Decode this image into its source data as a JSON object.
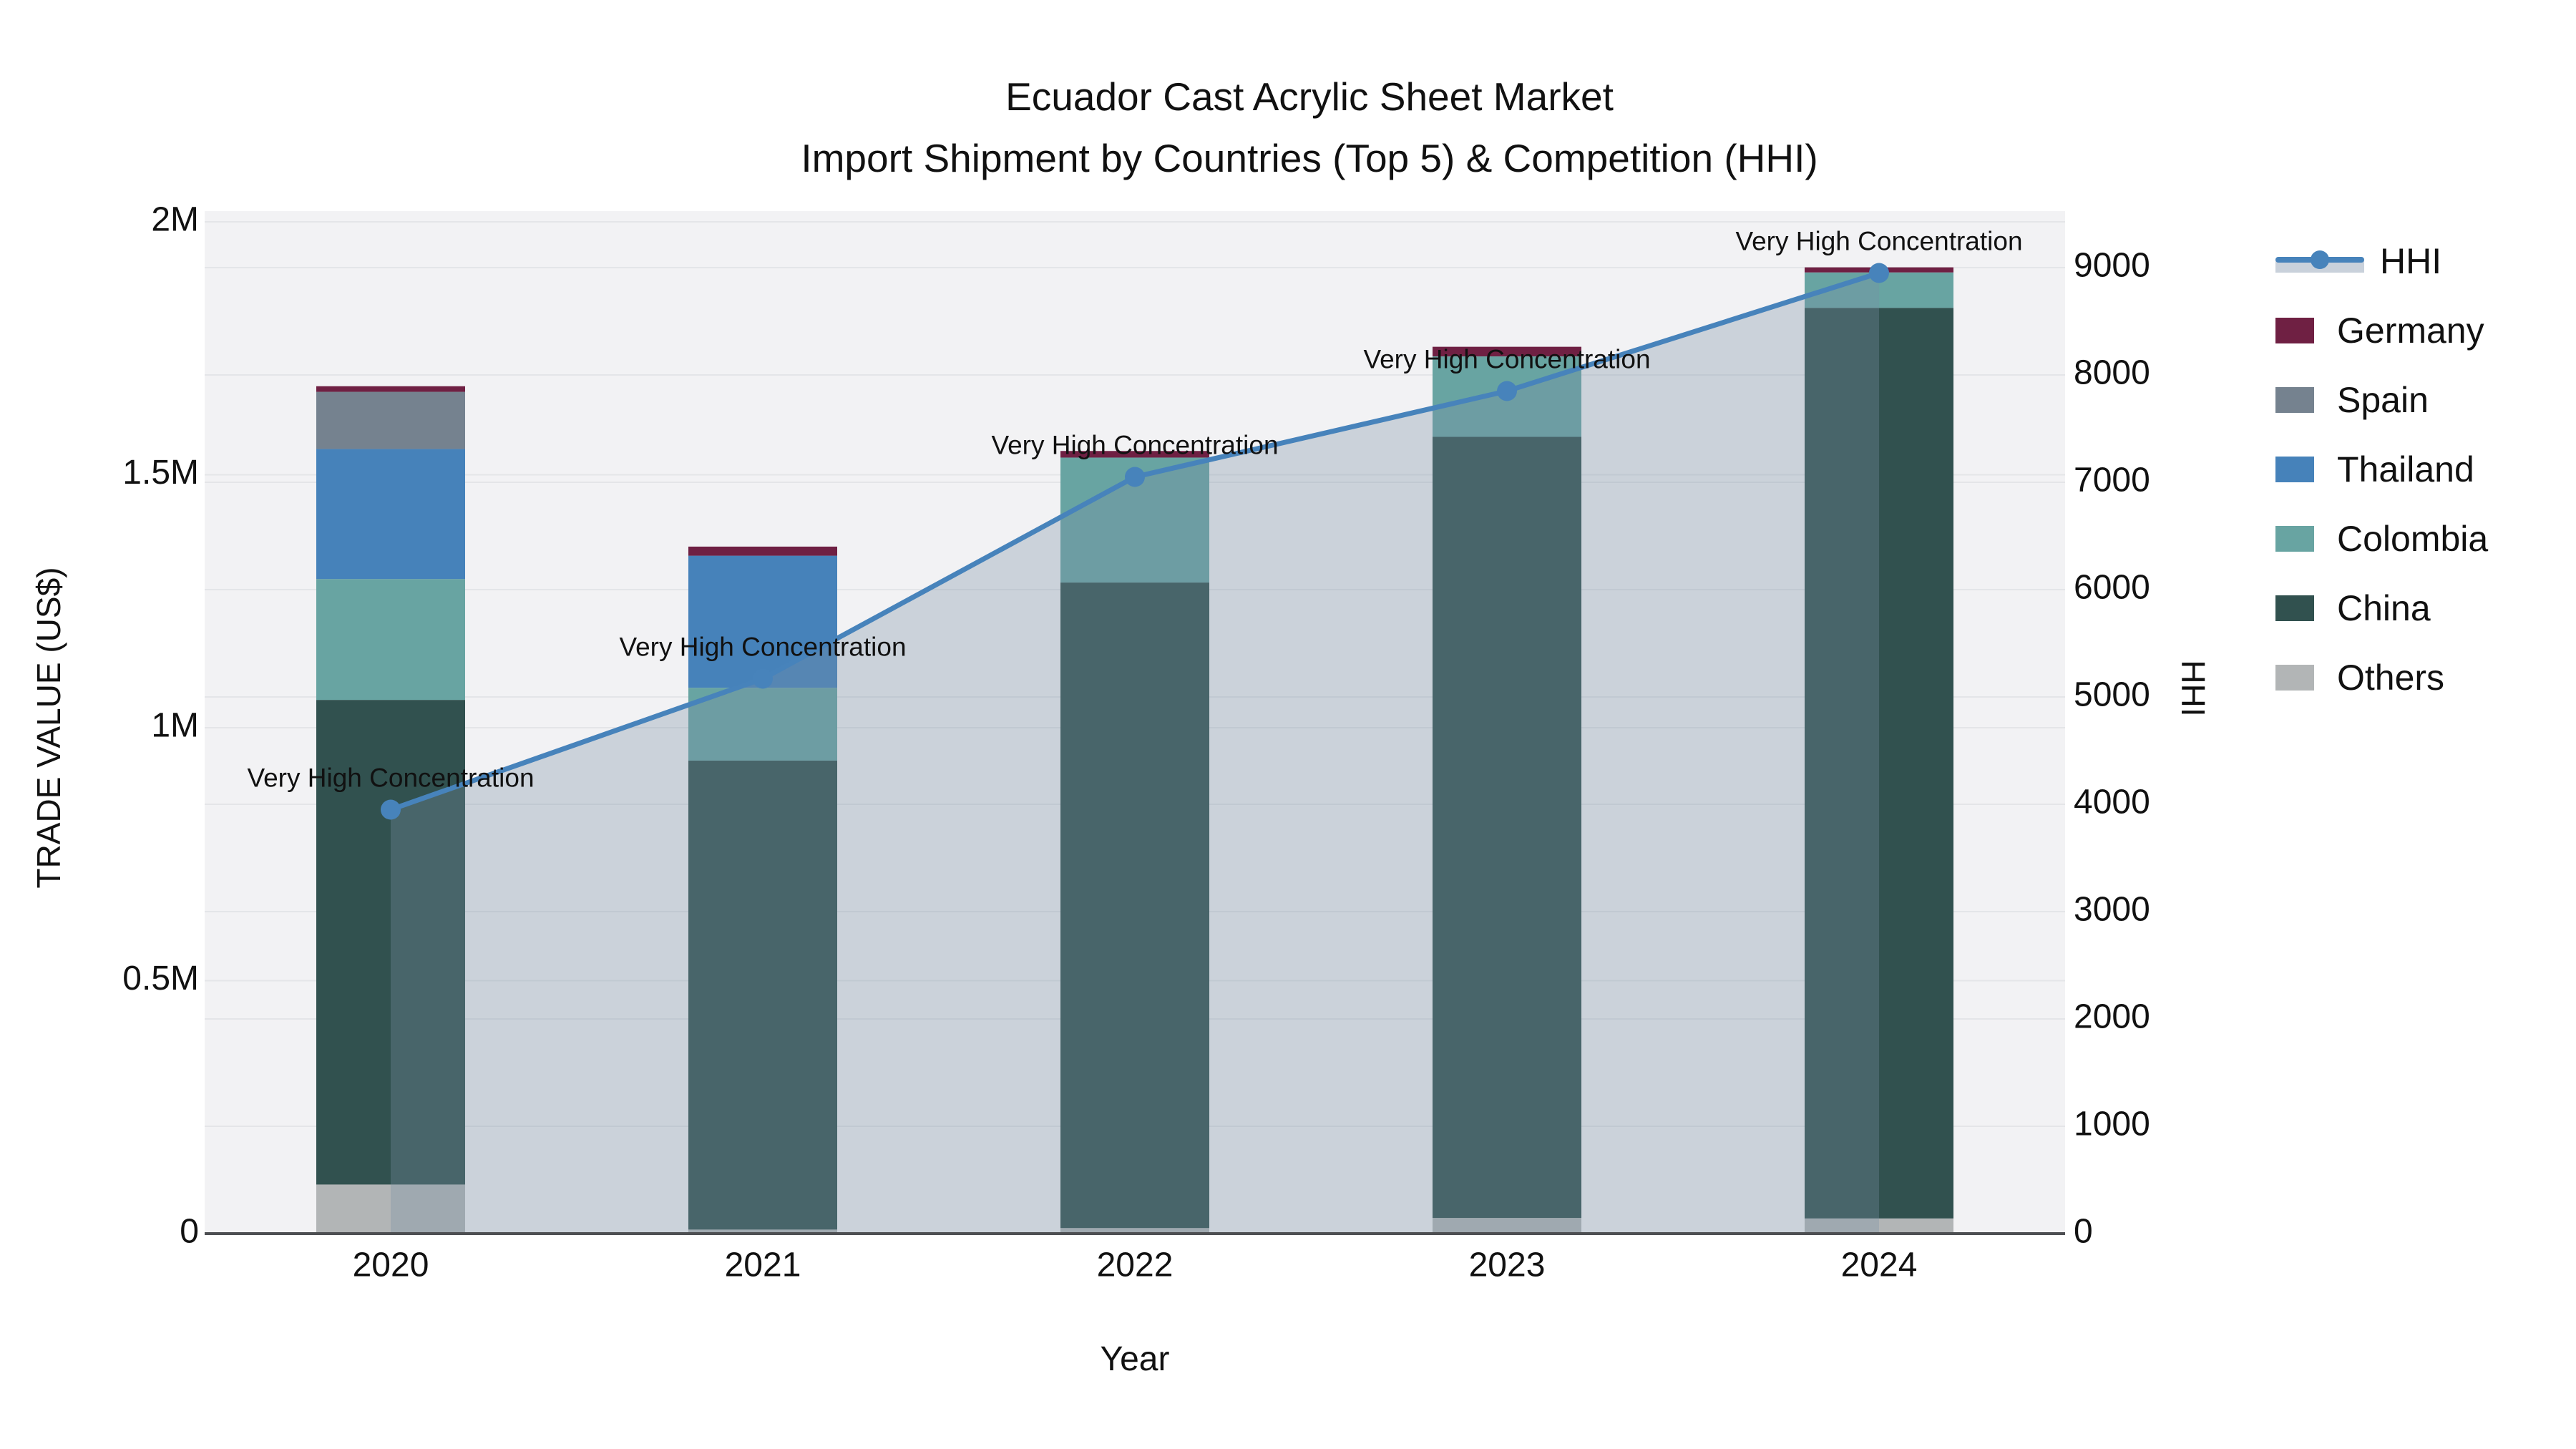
{
  "title": {
    "line1": "Ecuador Cast Acrylic Sheet Market",
    "line2": "Import Shipment by Countries (Top 5) & Competition (HHI)"
  },
  "chart_data": {
    "type": "combo_stacked_bar_line",
    "title": "Ecuador Cast Acrylic Sheet Market — Import Shipment by Countries (Top 5) & Competition (HHI)",
    "categories": [
      "2020",
      "2021",
      "2022",
      "2023",
      "2024"
    ],
    "bar_unit": "US$",
    "bar_series": [
      {
        "name": "Others",
        "color": "#b2b5b6",
        "values": [
          97000,
          8000,
          11000,
          31000,
          30000
        ]
      },
      {
        "name": "China",
        "color": "#31514f",
        "values": [
          958000,
          927000,
          1276000,
          1544000,
          1800000
        ]
      },
      {
        "name": "Colombia",
        "color": "#68a4a2",
        "values": [
          239000,
          144000,
          247000,
          159000,
          70000
        ]
      },
      {
        "name": "Thailand",
        "color": "#4682ba",
        "values": [
          257000,
          261000,
          0,
          0,
          0
        ]
      },
      {
        "name": "Spain",
        "color": "#75828f",
        "values": [
          113000,
          0,
          0,
          0,
          0
        ]
      },
      {
        "name": "Germany",
        "color": "#6f2043",
        "values": [
          11000,
          18000,
          13000,
          19000,
          10000
        ]
      }
    ],
    "bar_totals": [
      1675000,
      1358000,
      1547000,
      1753000,
      1910000
    ],
    "line_series": {
      "name": "HHI",
      "color": "#4783bb",
      "area_fill": "rgba(120,142,165,0.32)",
      "values": [
        3950,
        5170,
        7050,
        7850,
        8950
      ],
      "annotation": "Very High Concentration"
    },
    "x_axis": {
      "title": "Year"
    },
    "y_left": {
      "title": "TRADE VALUE (US$)",
      "max": 2000000,
      "ticks": [
        {
          "label": "0",
          "value": 0
        },
        {
          "label": "0.5M",
          "value": 500000
        },
        {
          "label": "1M",
          "value": 1000000
        },
        {
          "label": "1.5M",
          "value": 1500000
        },
        {
          "label": "2M",
          "value": 2000000
        }
      ]
    },
    "y_right": {
      "title": "HHI",
      "max": 9000,
      "ticks": [
        {
          "label": "0",
          "value": 0
        },
        {
          "label": "1000",
          "value": 1000
        },
        {
          "label": "2000",
          "value": 2000
        },
        {
          "label": "3000",
          "value": 3000
        },
        {
          "label": "4000",
          "value": 4000
        },
        {
          "label": "5000",
          "value": 5000
        },
        {
          "label": "6000",
          "value": 6000
        },
        {
          "label": "7000",
          "value": 7000
        },
        {
          "label": "8000",
          "value": 8000
        },
        {
          "label": "9000",
          "value": 9000
        }
      ]
    },
    "colors": {
      "plot_bg": "#f2f2f4",
      "grid": "#e4e5e8",
      "axis_line": "#4d4f52",
      "text": "#111111"
    }
  },
  "legend": {
    "items": [
      {
        "label": "HHI",
        "type": "line",
        "color": "#4783bb"
      },
      {
        "label": "Germany",
        "type": "box",
        "color": "#6f2043"
      },
      {
        "label": "Spain",
        "type": "box",
        "color": "#75828f"
      },
      {
        "label": "Thailand",
        "type": "box",
        "color": "#4682ba"
      },
      {
        "label": "Colombia",
        "type": "box",
        "color": "#68a4a2"
      },
      {
        "label": "China",
        "type": "box",
        "color": "#31514f"
      },
      {
        "label": "Others",
        "type": "box",
        "color": "#b2b5b6"
      }
    ]
  }
}
